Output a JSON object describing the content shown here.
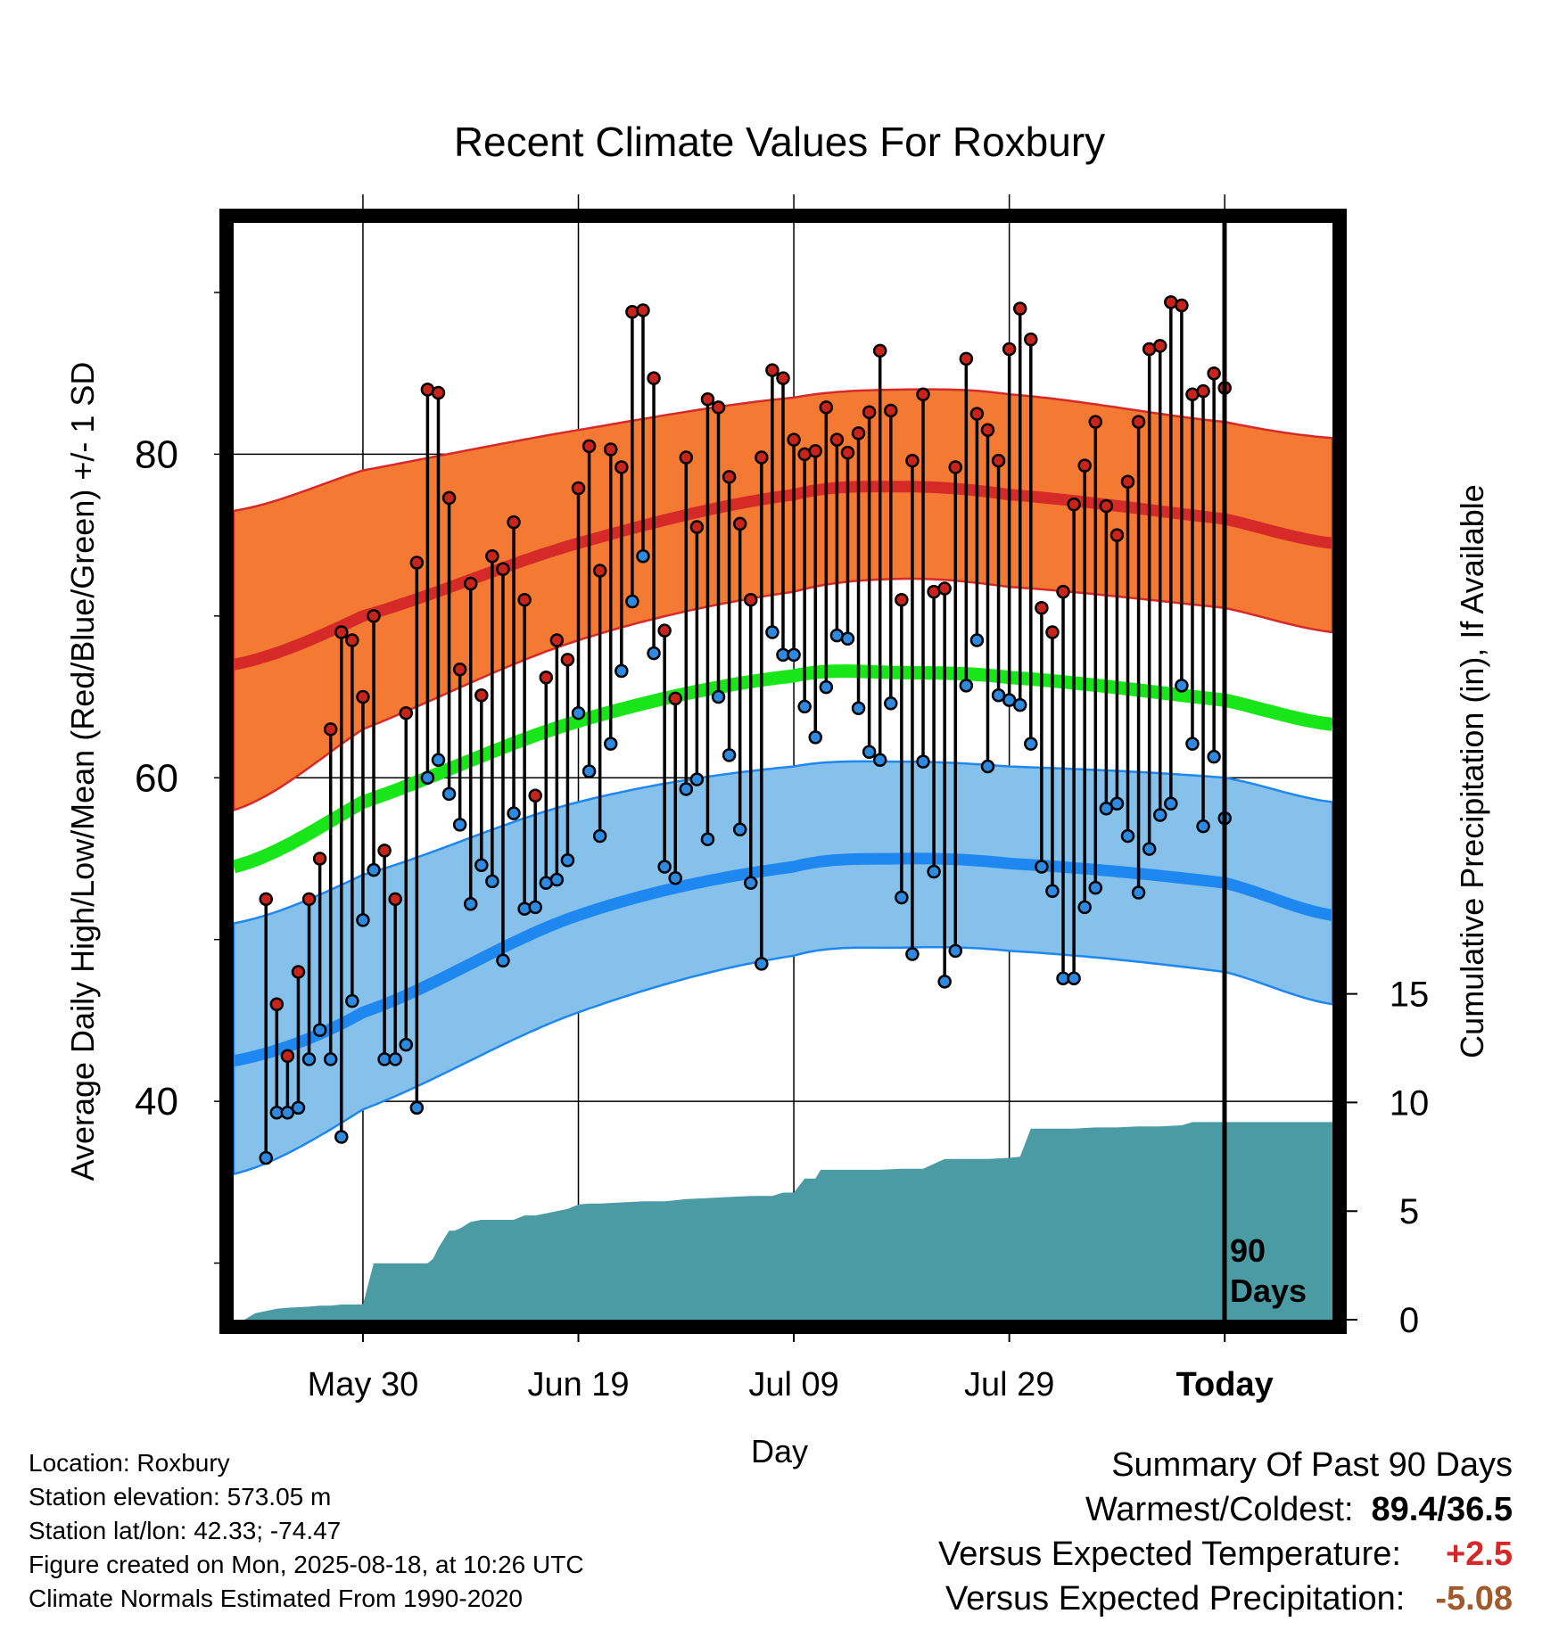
{
  "chart_data": {
    "type": "line",
    "title": "Recent Climate Values For Roxbury",
    "xlabel": "Day",
    "ylabel_left": "Average Daily High/Low/Mean (Red/Blue/Green) +/- 1 SD",
    "ylabel_right": "Cumulative Precipitation (in), If Available",
    "x_tick_labels": [
      "May 30",
      "Jun 19",
      "Jul 09",
      "Jul 29",
      "Today"
    ],
    "x_tick_days": [
      20,
      40,
      60,
      80,
      100
    ],
    "xlim": [
      8,
      110
    ],
    "today_day": 100,
    "period_label_1": "90",
    "period_label_2": "Days",
    "ylim": [
      26.5,
      94.3
    ],
    "y_ticks_labeled": [
      40,
      60,
      80
    ],
    "y_minor_ticks": [
      30,
      50,
      70,
      90
    ],
    "precip_ylim": [
      0,
      50.5
    ],
    "precip_ticks": [
      0,
      5,
      10,
      15
    ],
    "colors": {
      "high_band": "#f47a33",
      "high_mean": "#d52a28",
      "low_band": "#85c1ea",
      "low_mean": "#1e87f0",
      "mean_temp": "#19e619",
      "precip": "#4b9ba4",
      "high_dot": "#c8241c",
      "low_dot": "#2e8ae0"
    },
    "normals": {
      "days": [
        8,
        20,
        40,
        60,
        70,
        80,
        100,
        110
      ],
      "high_mean": [
        67.0,
        70.0,
        74.5,
        77.5,
        78.0,
        77.5,
        76.0,
        74.5
      ],
      "high_upper": [
        76.5,
        79.0,
        81.5,
        83.5,
        84.0,
        83.7,
        82.0,
        81.0
      ],
      "high_lower": [
        58.0,
        63.0,
        68.5,
        71.5,
        72.3,
        71.8,
        70.5,
        69.0
      ],
      "mean": [
        54.5,
        58.5,
        63.5,
        66.3,
        66.5,
        66.2,
        64.8,
        63.3
      ],
      "low_mean": [
        42.5,
        45.5,
        51.5,
        54.5,
        55.0,
        54.7,
        53.5,
        51.5
      ],
      "low_upper": [
        51.0,
        54.0,
        58.5,
        60.7,
        61.0,
        60.7,
        60.0,
        58.5
      ],
      "low_lower": [
        35.5,
        39.5,
        45.5,
        49.0,
        49.5,
        49.3,
        48.0,
        46.0
      ]
    },
    "daily_high": [
      52.5,
      46.0,
      42.8,
      48.0,
      52.5,
      55.0,
      63.0,
      69.0,
      68.5,
      65.0,
      70.0,
      55.5,
      52.5,
      64.0,
      73.3,
      84.0,
      83.8,
      77.3,
      66.7,
      72.0,
      65.1,
      73.7,
      72.9,
      75.8,
      71.0,
      58.9,
      66.2,
      68.5,
      67.3,
      77.9,
      80.5,
      72.8,
      80.3,
      79.2,
      88.8,
      88.9,
      84.7,
      69.1,
      64.9,
      79.8,
      75.5,
      83.4,
      82.9,
      78.6,
      75.7,
      71.0,
      79.8,
      85.2,
      84.7,
      80.9,
      80.0,
      80.2,
      82.9,
      80.9,
      80.1,
      81.3,
      82.6,
      86.4,
      82.7,
      71.0,
      79.6,
      83.7,
      71.5,
      71.7,
      79.2,
      85.9,
      82.5,
      81.5,
      79.6,
      86.5,
      89.0,
      87.1,
      70.5,
      69.0,
      71.5,
      76.9,
      79.3,
      82.0,
      76.8,
      75.0,
      78.3,
      82.0,
      86.5,
      86.7,
      89.4,
      89.2,
      83.7,
      83.9,
      85.0,
      84.1
    ],
    "daily_low": [
      36.5,
      39.3,
      39.3,
      39.6,
      42.6,
      44.4,
      42.6,
      37.8,
      46.2,
      51.2,
      54.3,
      42.6,
      42.6,
      43.5,
      39.6,
      60.0,
      61.1,
      59.0,
      57.1,
      52.2,
      54.6,
      53.6,
      48.7,
      57.8,
      51.9,
      52.0,
      53.5,
      53.7,
      54.9,
      64.0,
      60.4,
      56.4,
      62.1,
      66.6,
      70.9,
      73.7,
      67.7,
      54.5,
      53.8,
      59.3,
      59.9,
      56.2,
      65.0,
      61.4,
      56.8,
      53.5,
      48.5,
      69.0,
      67.6,
      67.6,
      64.4,
      62.5,
      65.6,
      68.8,
      68.6,
      64.3,
      61.6,
      61.1,
      64.6,
      52.6,
      49.1,
      61.0,
      54.2,
      47.4,
      49.3,
      65.7,
      68.5,
      60.7,
      65.1,
      64.8,
      64.5,
      62.1,
      54.5,
      53.0,
      47.6,
      47.6,
      52.0,
      53.2,
      58.1,
      58.4,
      56.4,
      52.9,
      55.6,
      57.7,
      58.4,
      65.7,
      62.1,
      57.0,
      61.3,
      57.5
    ],
    "precip_days": [
      9,
      10,
      11,
      12,
      13,
      15,
      16,
      17,
      18,
      20,
      21,
      22,
      23,
      24,
      25,
      26,
      26.5,
      27,
      28,
      28.5,
      29,
      30,
      31,
      32,
      33,
      34,
      35,
      36,
      37,
      38,
      39,
      40,
      41,
      42,
      44,
      46,
      48,
      50,
      52,
      54,
      56,
      58,
      59,
      60,
      61,
      62,
      62.5,
      63,
      64,
      65,
      66,
      68,
      70,
      72,
      74,
      76,
      78,
      80,
      81,
      82,
      82.5,
      83,
      84,
      86,
      88,
      90,
      92,
      94,
      96,
      97,
      98,
      100,
      110
    ],
    "precip_values": [
      0.0,
      0.3,
      0.4,
      0.5,
      0.55,
      0.6,
      0.65,
      0.65,
      0.7,
      0.7,
      2.6,
      2.6,
      2.6,
      2.6,
      2.6,
      2.6,
      2.8,
      3.3,
      4.1,
      4.1,
      4.2,
      4.5,
      4.6,
      4.6,
      4.6,
      4.6,
      4.8,
      4.8,
      4.9,
      5.0,
      5.1,
      5.3,
      5.35,
      5.35,
      5.4,
      5.45,
      5.45,
      5.55,
      5.6,
      5.65,
      5.7,
      5.7,
      5.85,
      5.85,
      6.5,
      6.5,
      6.9,
      6.9,
      6.9,
      6.9,
      6.9,
      6.9,
      6.95,
      6.95,
      7.4,
      7.4,
      7.4,
      7.45,
      7.5,
      8.8,
      8.8,
      8.8,
      8.8,
      8.8,
      8.85,
      8.85,
      8.9,
      8.9,
      8.95,
      9.1,
      9.1,
      9.1,
      9.1
    ]
  },
  "info": {
    "location": "Location: Roxbury",
    "elevation": "Station elevation: 573.05 m",
    "latlon": "Station lat/lon: 42.33; -74.47",
    "created": "Figure created on Mon, 2025-08-18, at 10:26 UTC",
    "normals": "Climate Normals Estimated From 1990-2020"
  },
  "summary": {
    "heading": "Summary Of Past 90 Days",
    "warm_label": "Warmest/Coldest:",
    "warm_value": "89.4/36.5",
    "temp_label": "Versus Expected Temperature:",
    "temp_value": "+2.5",
    "temp_color": "#d62828",
    "precip_label": "Versus Expected Precipitation:",
    "precip_value": "-5.08",
    "precip_color": "#a05a2c"
  }
}
